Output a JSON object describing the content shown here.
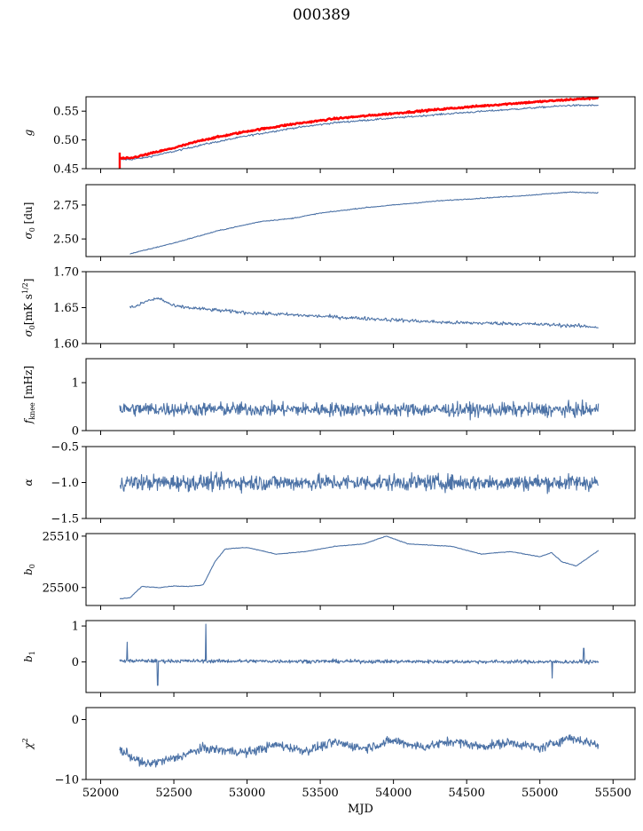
{
  "figure": {
    "title": "000389",
    "xlabel": "MJD"
  },
  "colors": {
    "series": "#4c72a6",
    "reference": "#ff0000",
    "axis": "#000000"
  },
  "chart_data": {
    "type": "line",
    "title": "000389",
    "xlabel": "MJD",
    "xlim": [
      51900,
      55650
    ],
    "xticks": [
      52000,
      52500,
      53000,
      53500,
      54000,
      54500,
      55000,
      55500
    ],
    "x_range_of_data": [
      52130,
      55400
    ],
    "panels": [
      {
        "ylabel": "g",
        "ylim": [
          0.45,
          0.575
        ],
        "yticks": [
          0.45,
          0.5,
          0.55
        ],
        "ytick_labels": [
          "0.45",
          "0.50",
          "0.55"
        ],
        "series": [
          {
            "color": "#4c72a6",
            "x": [
              52130,
              52200,
              52300,
              52500,
              52700,
              53000,
              53300,
              53600,
              54000,
              54400,
              54800,
              55200,
              55400
            ],
            "y": [
              0.466,
              0.466,
              0.469,
              0.48,
              0.492,
              0.507,
              0.52,
              0.53,
              0.538,
              0.546,
              0.553,
              0.56,
              0.56
            ]
          },
          {
            "color": "#ff0000",
            "x": [
              52130,
              52200,
              52300,
              52500,
              52700,
              53000,
              53300,
              53600,
              54000,
              54400,
              54800,
              55200,
              55400
            ],
            "y": [
              0.468,
              0.468,
              0.474,
              0.486,
              0.5,
              0.515,
              0.527,
              0.537,
              0.546,
              0.555,
              0.563,
              0.57,
              0.573
            ]
          }
        ]
      },
      {
        "ylabel": "σ0 [du]",
        "ylim": [
          2.37,
          2.9
        ],
        "yticks": [
          2.5,
          2.75
        ],
        "ytick_labels": [
          "2.50",
          "2.75"
        ],
        "series": [
          {
            "color": "#4c72a6",
            "x": [
              52200,
              52500,
              52800,
              53100,
              53300,
              53500,
              53800,
              54000,
              54300,
              54600,
              54900,
              55200,
              55400
            ],
            "y": [
              2.39,
              2.47,
              2.56,
              2.63,
              2.65,
              2.69,
              2.73,
              2.75,
              2.78,
              2.8,
              2.82,
              2.845,
              2.84
            ]
          }
        ]
      },
      {
        "ylabel": "σ0[mK s^1/2]",
        "ylim": [
          1.6,
          1.7
        ],
        "yticks": [
          1.6,
          1.65,
          1.7
        ],
        "ytick_labels": [
          "1.60",
          "1.65",
          "1.70"
        ],
        "series": [
          {
            "color": "#4c72a6",
            "x": [
              52200,
              52250,
              52300,
              52350,
              52400,
              52500,
              52700,
              53000,
              53300,
              53600,
              54000,
              54400,
              54800,
              55100,
              55400
            ],
            "y": [
              1.651,
              1.652,
              1.658,
              1.661,
              1.663,
              1.652,
              1.648,
              1.643,
              1.64,
              1.637,
              1.633,
              1.629,
              1.628,
              1.626,
              1.623
            ]
          }
        ]
      },
      {
        "ylabel": "f_knee [mHz]",
        "ylim": [
          0,
          1.5
        ],
        "yticks": [
          0,
          1
        ],
        "ytick_labels": [
          "0",
          "1"
        ],
        "series": [
          {
            "color": "#4c72a6",
            "x": [
              52130,
              55400
            ],
            "y": [
              0.45,
              0.43
            ],
            "noise": 0.14
          }
        ]
      },
      {
        "ylabel": "α",
        "ylim": [
          -1.5,
          -0.5
        ],
        "yticks": [
          -1.5,
          -1.0,
          -0.5
        ],
        "ytick_labels": [
          "−1.5",
          "−1.0",
          "−0.5"
        ],
        "series": [
          {
            "color": "#4c72a6",
            "x": [
              52130,
              55400
            ],
            "y": [
              -1.0,
              -1.0
            ],
            "noise": 0.11
          }
        ]
      },
      {
        "ylabel": "b0",
        "ylim": [
          25496.5,
          25510.5
        ],
        "yticks": [
          25500,
          25510
        ],
        "ytick_labels": [
          "25500",
          "25510"
        ],
        "series": [
          {
            "color": "#4c72a6",
            "x": [
              52130,
              52200,
              52280,
              52400,
              52500,
              52600,
              52700,
              52780,
              52850,
              53000,
              53200,
              53400,
              53600,
              53800,
              53950,
              54100,
              54400,
              54600,
              54800,
              55000,
              55080,
              55150,
              55250,
              55400
            ],
            "y": [
              25497.8,
              25498.0,
              25500.2,
              25500.0,
              25500.3,
              25500.2,
              25500.5,
              25505,
              25507.5,
              25507.8,
              25506.5,
              25507.0,
              25508.0,
              25508.5,
              25510.0,
              25508.5,
              25508.0,
              25506.5,
              25507.0,
              25506.0,
              25506.8,
              25505.0,
              25504.2,
              25507.2
            ]
          }
        ]
      },
      {
        "ylabel": "b1",
        "ylim": [
          -0.85,
          1.15
        ],
        "yticks": [
          0,
          1
        ],
        "ytick_labels": [
          "0",
          "1"
        ],
        "series": [
          {
            "color": "#4c72a6",
            "x": [
              52130,
              55400
            ],
            "y": [
              0.03,
              0.0
            ],
            "noise": 0.05,
            "spikes": [
              [
                52180,
                0.55
              ],
              [
                52390,
                -0.65
              ],
              [
                52720,
                1.05
              ],
              [
                55085,
                -0.45
              ],
              [
                55300,
                0.38
              ]
            ]
          }
        ]
      },
      {
        "ylabel": "χ²",
        "ylim": [
          -10,
          2
        ],
        "yticks": [
          -10,
          0
        ],
        "ytick_labels": [
          "−10",
          "0"
        ],
        "series": [
          {
            "color": "#4c72a6",
            "x": [
              52130,
              52300,
              52500,
              52700,
              53000,
              53200,
              53400,
              53600,
              53800,
              54000,
              54200,
              54400,
              54600,
              54800,
              55000,
              55200,
              55400
            ],
            "y": [
              -5.0,
              -7.5,
              -6.5,
              -4.8,
              -5.5,
              -4.2,
              -5.2,
              -3.8,
              -4.8,
              -3.5,
              -4.6,
              -3.6,
              -4.5,
              -3.8,
              -4.8,
              -3.0,
              -4.2
            ],
            "noise": 0.75
          }
        ]
      }
    ]
  }
}
